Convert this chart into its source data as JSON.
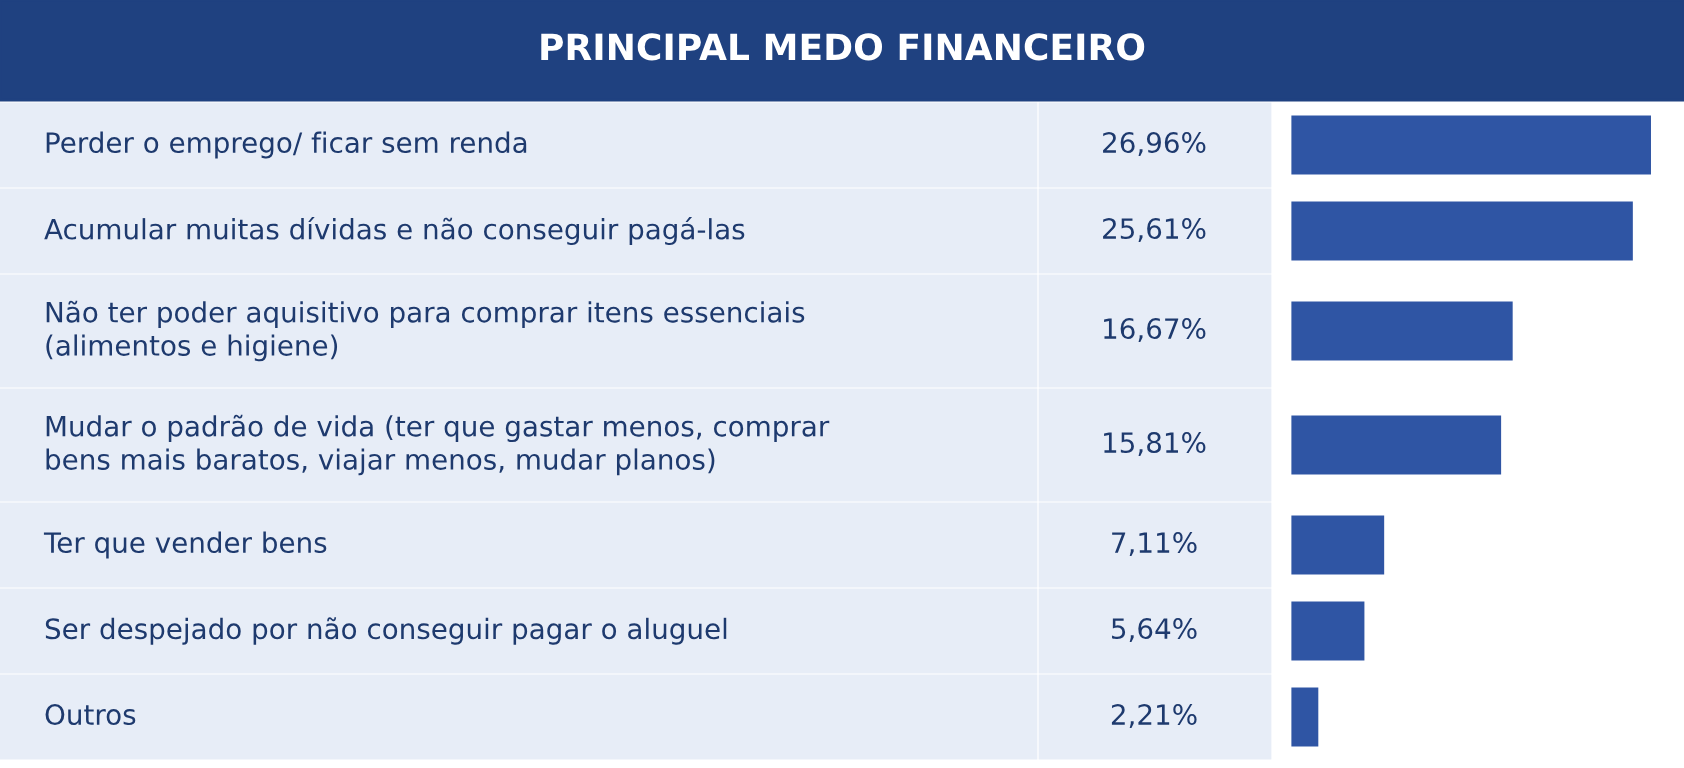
{
  "chart_data": {
    "type": "bar",
    "orientation": "horizontal",
    "title": "PRINCIPAL MEDO FINANCEIRO",
    "categories": [
      "Perder o emprego/ ficar sem renda",
      "Acumular muitas dívidas e não conseguir pagá-las",
      "Não ter poder aquisitivo para comprar itens essenciais\n(alimentos e higiene)",
      "Mudar o padrão de vida (ter que gastar menos, comprar\nbens mais baratos, viajar menos, mudar planos)",
      "Ter que vender bens",
      "Ser despejado por não conseguir pagar o aluguel",
      "Outros"
    ],
    "values": [
      26.96,
      25.61,
      16.67,
      15.81,
      7.11,
      5.64,
      2.21
    ],
    "value_labels": [
      "26,96%",
      "25,61%",
      "16,67%",
      "15,81%",
      "7,11%",
      "5,64%",
      "2,21%"
    ],
    "color": "#2f55a4"
  }
}
